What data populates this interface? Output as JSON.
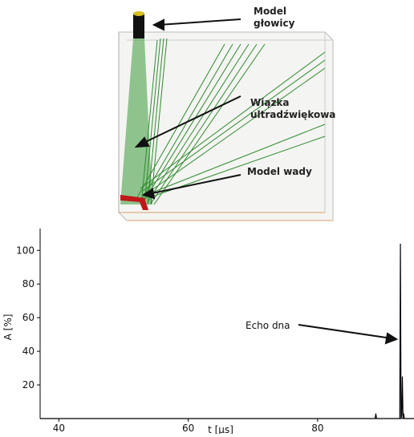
{
  "diagram": {
    "labels": [
      {
        "lines": [
          "Model",
          "głowicy"
        ]
      },
      {
        "lines": [
          "Wiązka",
          "ultradźwiękowa"
        ]
      },
      {
        "lines": [
          "Model wady"
        ]
      }
    ]
  },
  "chart_data": {
    "type": "line",
    "xlabel": "t [µs]",
    "ylabel": "A [%]",
    "xlim": [
      37.1,
      94.9
    ],
    "ylim": [
      0,
      113
    ],
    "xticks": [
      40,
      60,
      80
    ],
    "yticks": [
      20,
      40,
      60,
      80,
      100
    ],
    "series": [
      {
        "color": "#000000",
        "x": [
          37.1,
          88,
          88.9,
          89.0,
          89.1,
          92.5,
          92.7,
          92.8,
          92.9,
          93.0,
          93.1,
          93.2,
          93.3,
          93.4,
          94.9
        ],
        "values": [
          0,
          0,
          0,
          3,
          0,
          0,
          0,
          104,
          0,
          2,
          25,
          0,
          3,
          0,
          0
        ]
      }
    ],
    "annotations": [
      {
        "text": "Echo dna"
      }
    ]
  }
}
